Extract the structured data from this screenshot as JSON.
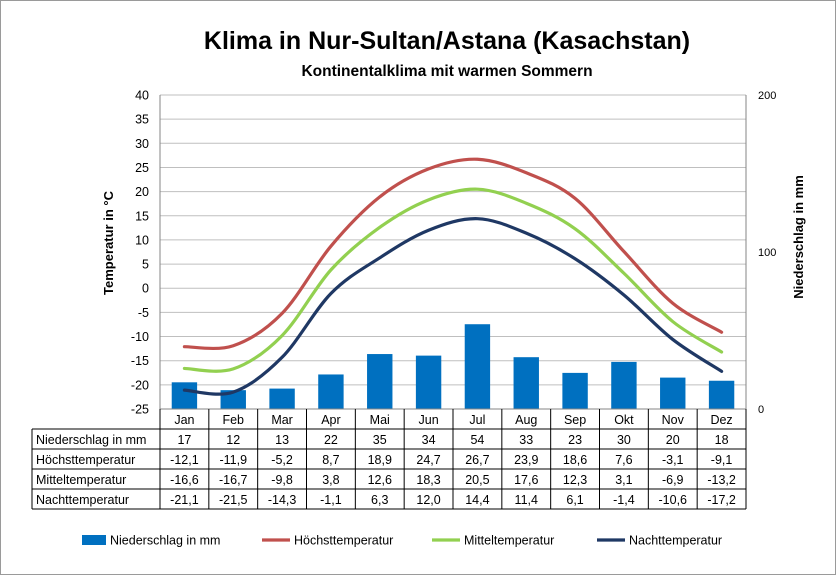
{
  "chart_data": {
    "type": "bar+line",
    "title": "Klima in Nur-Sultan/Astana (Kasachstan)",
    "subtitle": "Kontinentalklima mit warmen Sommern",
    "ylabel": "Temperatur in °C",
    "y2label": "Niederschlag in mm",
    "ylim": [
      -25,
      40
    ],
    "y_ticks": [
      40,
      35,
      30,
      25,
      20,
      15,
      10,
      5,
      0,
      -5,
      -10,
      -15,
      -20,
      -25
    ],
    "y2lim": [
      0,
      200
    ],
    "y2_ticks": [
      200,
      100,
      0
    ],
    "categories": [
      "Jan",
      "Feb",
      "Mar",
      "Apr",
      "Mai",
      "Jun",
      "Jul",
      "Aug",
      "Sep",
      "Okt",
      "Nov",
      "Dez"
    ],
    "grid": true,
    "legend_position": "bottom",
    "series": [
      {
        "name": "Niederschlag in mm",
        "type": "bar",
        "axis": "right",
        "color": "#0070C0",
        "values": [
          17,
          12,
          13,
          22,
          35,
          34,
          54,
          33,
          23,
          30,
          20,
          18
        ],
        "labels": [
          "17",
          "12",
          "13",
          "22",
          "35",
          "34",
          "54",
          "33",
          "23",
          "30",
          "20",
          "18"
        ]
      },
      {
        "name": "Höchsttemperatur",
        "type": "line",
        "axis": "left",
        "color": "#C0504D",
        "values": [
          -12.1,
          -11.9,
          -5.2,
          8.7,
          18.9,
          24.7,
          26.7,
          23.9,
          18.6,
          7.6,
          -3.1,
          -9.1
        ],
        "labels": [
          "-12,1",
          "-11,9",
          "-5,2",
          "8,7",
          "18,9",
          "24,7",
          "26,7",
          "23,9",
          "18,6",
          "7,6",
          "-3,1",
          "-9,1"
        ]
      },
      {
        "name": "Mitteltemperatur",
        "type": "line",
        "axis": "left",
        "color": "#92D050",
        "values": [
          -16.6,
          -16.7,
          -9.8,
          3.8,
          12.6,
          18.3,
          20.5,
          17.6,
          12.3,
          3.1,
          -6.9,
          -13.2
        ],
        "labels": [
          "-16,6",
          "-16,7",
          "-9,8",
          "3,8",
          "12,6",
          "18,3",
          "20,5",
          "17,6",
          "12,3",
          "3,1",
          "-6,9",
          "-13,2"
        ]
      },
      {
        "name": "Nachttemperatur",
        "type": "line",
        "axis": "left",
        "color": "#1F3864",
        "values": [
          -21.1,
          -21.5,
          -14.3,
          -1.1,
          6.3,
          12.0,
          14.4,
          11.4,
          6.1,
          -1.4,
          -10.6,
          -17.2
        ],
        "labels": [
          "-21,1",
          "-21,5",
          "-14,3",
          "-1,1",
          "6,3",
          "12,0",
          "14,4",
          "11,4",
          "6,1",
          "-1,4",
          "-10,6",
          "-17,2"
        ]
      }
    ]
  }
}
